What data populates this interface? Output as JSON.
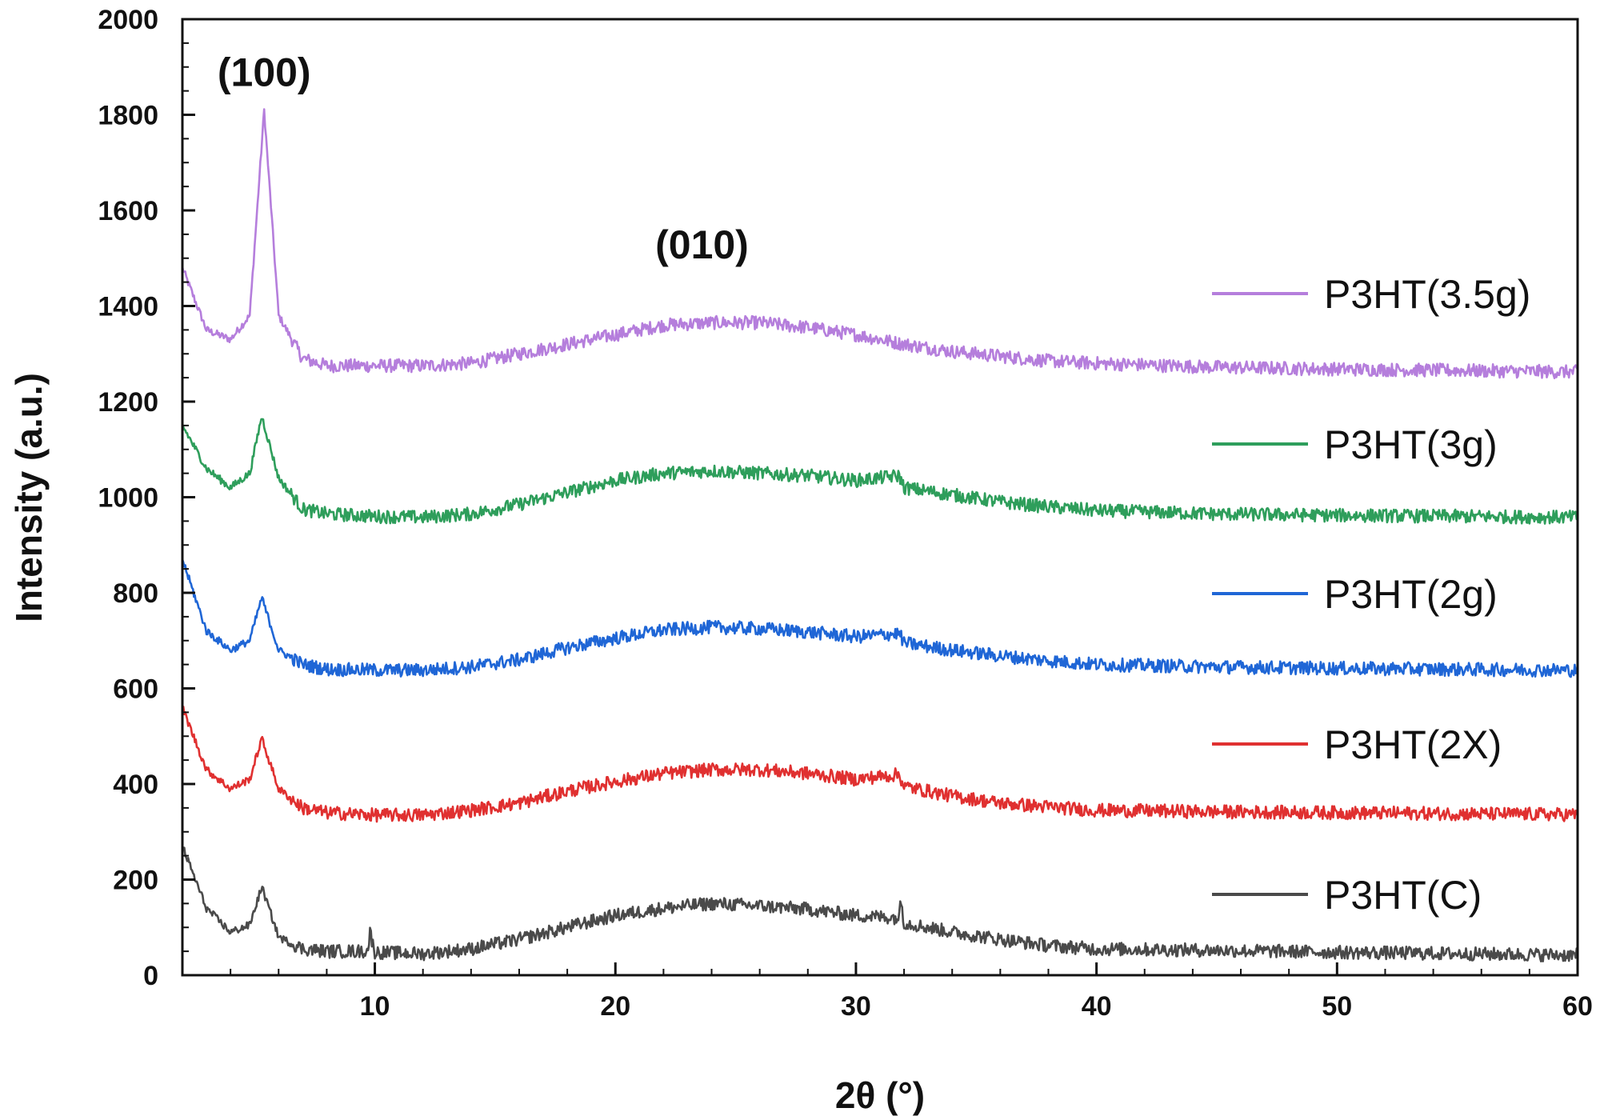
{
  "chart_data": {
    "type": "line",
    "xlabel": "2θ (°)",
    "ylabel": "Intensity (a.u.)",
    "xlim": [
      2,
      60
    ],
    "ylim": [
      0,
      2000
    ],
    "x_ticks": [
      10,
      20,
      30,
      40,
      50,
      60
    ],
    "y_ticks": [
      0,
      200,
      400,
      600,
      800,
      1000,
      1200,
      1400,
      1600,
      1800,
      2000
    ],
    "grid": false,
    "legend_position": "right",
    "annotations": [
      {
        "text": "(100)",
        "x": 5.4,
        "y": 1860
      },
      {
        "text": "(010)",
        "x": 23.6,
        "y": 1500
      }
    ],
    "series": [
      {
        "name": "P3HT(3.5g)",
        "color": "#b57edc",
        "points": [
          [
            2,
            1480
          ],
          [
            3,
            1350
          ],
          [
            4,
            1330
          ],
          [
            4.8,
            1380
          ],
          [
            5.4,
            1810
          ],
          [
            6,
            1380
          ],
          [
            7,
            1290
          ],
          [
            8,
            1275
          ],
          [
            10,
            1275
          ],
          [
            12,
            1275
          ],
          [
            14,
            1280
          ],
          [
            16,
            1300
          ],
          [
            18,
            1320
          ],
          [
            20,
            1340
          ],
          [
            22,
            1360
          ],
          [
            24,
            1365
          ],
          [
            26,
            1365
          ],
          [
            28,
            1355
          ],
          [
            30,
            1340
          ],
          [
            32,
            1320
          ],
          [
            34,
            1305
          ],
          [
            36,
            1295
          ],
          [
            38,
            1285
          ],
          [
            40,
            1280
          ],
          [
            45,
            1272
          ],
          [
            50,
            1268
          ],
          [
            55,
            1265
          ],
          [
            60,
            1262
          ]
        ]
      },
      {
        "name": "P3HT(3g)",
        "color": "#2e9e5b",
        "points": [
          [
            2,
            1150
          ],
          [
            3,
            1060
          ],
          [
            4,
            1020
          ],
          [
            4.8,
            1050
          ],
          [
            5.3,
            1170
          ],
          [
            6,
            1040
          ],
          [
            7,
            975
          ],
          [
            8,
            965
          ],
          [
            10,
            960
          ],
          [
            12,
            958
          ],
          [
            14,
            965
          ],
          [
            16,
            985
          ],
          [
            18,
            1010
          ],
          [
            20,
            1035
          ],
          [
            22,
            1050
          ],
          [
            24,
            1055
          ],
          [
            26,
            1050
          ],
          [
            28,
            1045
          ],
          [
            30,
            1035
          ],
          [
            31.8,
            1045
          ],
          [
            32,
            1020
          ],
          [
            34,
            1005
          ],
          [
            36,
            990
          ],
          [
            38,
            980
          ],
          [
            40,
            972
          ],
          [
            45,
            965
          ],
          [
            50,
            962
          ],
          [
            55,
            960
          ],
          [
            60,
            958
          ]
        ]
      },
      {
        "name": "P3HT(2g)",
        "color": "#1f66d6",
        "points": [
          [
            2,
            870
          ],
          [
            3,
            720
          ],
          [
            4,
            680
          ],
          [
            4.8,
            700
          ],
          [
            5.3,
            790
          ],
          [
            6,
            680
          ],
          [
            7,
            650
          ],
          [
            8,
            640
          ],
          [
            10,
            638
          ],
          [
            12,
            638
          ],
          [
            14,
            645
          ],
          [
            16,
            660
          ],
          [
            18,
            685
          ],
          [
            20,
            705
          ],
          [
            22,
            722
          ],
          [
            24,
            728
          ],
          [
            26,
            725
          ],
          [
            28,
            718
          ],
          [
            30,
            708
          ],
          [
            31.8,
            715
          ],
          [
            32,
            695
          ],
          [
            34,
            680
          ],
          [
            36,
            668
          ],
          [
            38,
            658
          ],
          [
            40,
            650
          ],
          [
            45,
            645
          ],
          [
            50,
            642
          ],
          [
            55,
            640
          ],
          [
            60,
            638
          ]
        ]
      },
      {
        "name": "P3HT(2X)",
        "color": "#e03030",
        "points": [
          [
            2,
            560
          ],
          [
            3,
            430
          ],
          [
            4,
            390
          ],
          [
            4.8,
            410
          ],
          [
            5.3,
            495
          ],
          [
            6,
            390
          ],
          [
            7,
            350
          ],
          [
            8,
            340
          ],
          [
            10,
            335
          ],
          [
            12,
            335
          ],
          [
            14,
            345
          ],
          [
            16,
            360
          ],
          [
            18,
            385
          ],
          [
            20,
            405
          ],
          [
            22,
            422
          ],
          [
            24,
            430
          ],
          [
            26,
            430
          ],
          [
            28,
            422
          ],
          [
            30,
            410
          ],
          [
            31.8,
            420
          ],
          [
            32,
            395
          ],
          [
            34,
            375
          ],
          [
            36,
            360
          ],
          [
            38,
            352
          ],
          [
            40,
            345
          ],
          [
            45,
            342
          ],
          [
            50,
            340
          ],
          [
            55,
            338
          ],
          [
            60,
            336
          ]
        ]
      },
      {
        "name": "P3HT(C)",
        "color": "#4a4a4a",
        "points": [
          [
            2,
            270
          ],
          [
            3,
            140
          ],
          [
            4,
            90
          ],
          [
            4.8,
            105
          ],
          [
            5.3,
            185
          ],
          [
            6,
            80
          ],
          [
            7,
            55
          ],
          [
            8,
            50
          ],
          [
            9.7,
            50
          ],
          [
            9.8,
            90
          ],
          [
            10,
            48
          ],
          [
            12,
            45
          ],
          [
            14,
            55
          ],
          [
            16,
            75
          ],
          [
            18,
            100
          ],
          [
            20,
            125
          ],
          [
            22,
            140
          ],
          [
            24,
            150
          ],
          [
            26,
            145
          ],
          [
            28,
            138
          ],
          [
            30,
            125
          ],
          [
            31.8,
            120
          ],
          [
            31.85,
            165
          ],
          [
            32,
            110
          ],
          [
            34,
            90
          ],
          [
            36,
            75
          ],
          [
            38,
            62
          ],
          [
            40,
            55
          ],
          [
            45,
            52
          ],
          [
            50,
            48
          ],
          [
            55,
            45
          ],
          [
            60,
            42
          ]
        ]
      }
    ]
  }
}
